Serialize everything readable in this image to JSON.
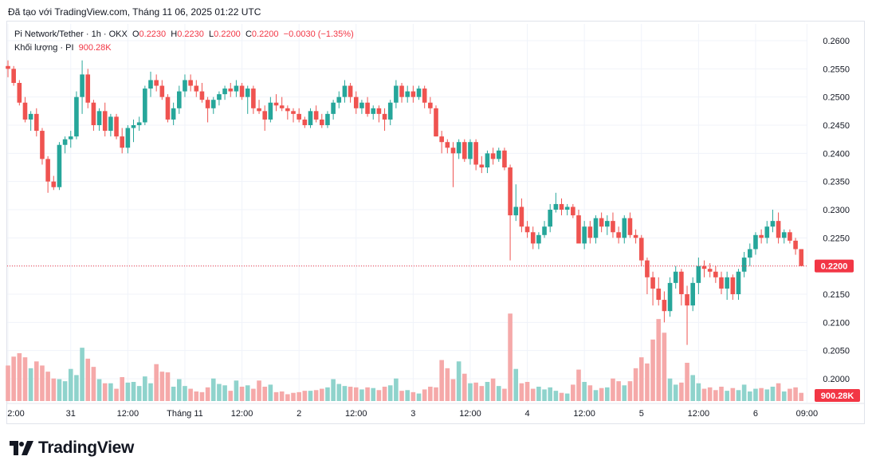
{
  "caption": "Đã tạo với TradingView.com, Tháng 11 06, 2025 01:22 UTC",
  "legend": {
    "symbol": "Pi Network/Tether · 1h · OKX",
    "o_label": "O",
    "o_value": "0.2230",
    "h_label": "H",
    "h_value": "0.2230",
    "l_label": "L",
    "l_value": "0.2200",
    "c_label": "C",
    "c_value": "0.2200",
    "change": "−0.0030 (−1.35%)",
    "volume_label": "Khối lượng · PI",
    "volume_value": "900.28K"
  },
  "brand": {
    "name": "TradingView",
    "logo_icon": "tradingview-logo-icon"
  },
  "colors": {
    "up": "#26a69a",
    "down": "#ef5350",
    "up_vol": "#8fd3cc",
    "down_vol": "#f5a9a9",
    "tag": "#f23645"
  },
  "chart_data": {
    "type": "candlestick",
    "title": "Pi Network/Tether · 1h · OKX",
    "y_ticks": [
      "0.2600",
      "0.2550",
      "0.2500",
      "0.2450",
      "0.2400",
      "0.2350",
      "0.2300",
      "0.2250",
      "0.2200",
      "0.2150",
      "0.2100",
      "0.2050",
      "0.2000"
    ],
    "ylim": [
      0.1975,
      0.2625
    ],
    "x_ticks": [
      {
        "label": "2:00",
        "index": 0
      },
      {
        "label": "31",
        "index": 11
      },
      {
        "label": "12:00",
        "index": 21
      },
      {
        "label": "Tháng 11",
        "index": 31
      },
      {
        "label": "12:00",
        "index": 41
      },
      {
        "label": "2",
        "index": 51
      },
      {
        "label": "12:00",
        "index": 61
      },
      {
        "label": "3",
        "index": 71
      },
      {
        "label": "12:00",
        "index": 81
      },
      {
        "label": "4",
        "index": 91
      },
      {
        "label": "12:00",
        "index": 101
      },
      {
        "label": "5",
        "index": 111
      },
      {
        "label": "12:00",
        "index": 121
      },
      {
        "label": "6",
        "index": 131
      },
      {
        "label": "09:00",
        "index": 140
      }
    ],
    "last_price": "0.2200",
    "last_volume": "900.28K",
    "volume_max": 1400,
    "ohlcv": [
      [
        0.2555,
        0.2565,
        0.2535,
        0.255,
        520
      ],
      [
        0.255,
        0.2555,
        0.252,
        0.2525,
        650
      ],
      [
        0.2525,
        0.253,
        0.2485,
        0.249,
        700
      ],
      [
        0.249,
        0.25,
        0.2455,
        0.246,
        640
      ],
      [
        0.246,
        0.2475,
        0.244,
        0.247,
        480
      ],
      [
        0.247,
        0.248,
        0.243,
        0.244,
        580
      ],
      [
        0.244,
        0.2445,
        0.238,
        0.239,
        520
      ],
      [
        0.239,
        0.2395,
        0.233,
        0.235,
        430
      ],
      [
        0.235,
        0.236,
        0.2335,
        0.234,
        330
      ],
      [
        0.234,
        0.242,
        0.2335,
        0.2415,
        320
      ],
      [
        0.2415,
        0.243,
        0.24,
        0.2425,
        290
      ],
      [
        0.2425,
        0.244,
        0.241,
        0.243,
        470
      ],
      [
        0.243,
        0.251,
        0.2425,
        0.25,
        380
      ],
      [
        0.25,
        0.2565,
        0.247,
        0.254,
        780
      ],
      [
        0.254,
        0.255,
        0.248,
        0.249,
        620
      ],
      [
        0.249,
        0.2495,
        0.244,
        0.245,
        500
      ],
      [
        0.245,
        0.248,
        0.244,
        0.2475,
        320
      ],
      [
        0.2475,
        0.249,
        0.243,
        0.244,
        260
      ],
      [
        0.244,
        0.247,
        0.243,
        0.2465,
        260
      ],
      [
        0.2465,
        0.247,
        0.2425,
        0.243,
        180
      ],
      [
        0.243,
        0.2445,
        0.24,
        0.241,
        350
      ],
      [
        0.241,
        0.245,
        0.24,
        0.2445,
        270
      ],
      [
        0.2445,
        0.246,
        0.242,
        0.245,
        280
      ],
      [
        0.245,
        0.2465,
        0.244,
        0.2455,
        220
      ],
      [
        0.2455,
        0.252,
        0.245,
        0.2515,
        360
      ],
      [
        0.2515,
        0.2545,
        0.25,
        0.253,
        260
      ],
      [
        0.253,
        0.254,
        0.251,
        0.252,
        540
      ],
      [
        0.252,
        0.253,
        0.2495,
        0.25,
        430
      ],
      [
        0.25,
        0.2505,
        0.2455,
        0.246,
        420
      ],
      [
        0.246,
        0.249,
        0.245,
        0.248,
        210
      ],
      [
        0.248,
        0.252,
        0.247,
        0.251,
        320
      ],
      [
        0.251,
        0.254,
        0.25,
        0.253,
        220
      ],
      [
        0.253,
        0.254,
        0.251,
        0.252,
        180
      ],
      [
        0.252,
        0.253,
        0.25,
        0.251,
        140
      ],
      [
        0.251,
        0.2525,
        0.249,
        0.2495,
        130
      ],
      [
        0.2495,
        0.25,
        0.2455,
        0.248,
        200
      ],
      [
        0.248,
        0.25,
        0.247,
        0.2495,
        330
      ],
      [
        0.2495,
        0.251,
        0.2485,
        0.2505,
        250
      ],
      [
        0.2505,
        0.252,
        0.2495,
        0.2515,
        230
      ],
      [
        0.2515,
        0.2525,
        0.25,
        0.251,
        150
      ],
      [
        0.251,
        0.253,
        0.25,
        0.252,
        300
      ],
      [
        0.252,
        0.2525,
        0.2495,
        0.25,
        210
      ],
      [
        0.25,
        0.252,
        0.247,
        0.2515,
        230
      ],
      [
        0.2515,
        0.252,
        0.247,
        0.248,
        180
      ],
      [
        0.248,
        0.2495,
        0.247,
        0.2475,
        300
      ],
      [
        0.2475,
        0.2485,
        0.244,
        0.246,
        210
      ],
      [
        0.246,
        0.25,
        0.2455,
        0.249,
        240
      ],
      [
        0.249,
        0.2505,
        0.2475,
        0.2485,
        130
      ],
      [
        0.2485,
        0.25,
        0.2475,
        0.248,
        140
      ],
      [
        0.248,
        0.2485,
        0.246,
        0.2475,
        100
      ],
      [
        0.2475,
        0.248,
        0.2455,
        0.247,
        120
      ],
      [
        0.247,
        0.248,
        0.2455,
        0.246,
        130
      ],
      [
        0.246,
        0.2465,
        0.2445,
        0.245,
        150
      ],
      [
        0.245,
        0.248,
        0.2445,
        0.2475,
        150
      ],
      [
        0.2475,
        0.2485,
        0.2455,
        0.246,
        160
      ],
      [
        0.246,
        0.247,
        0.2445,
        0.245,
        180
      ],
      [
        0.245,
        0.2475,
        0.2445,
        0.247,
        200
      ],
      [
        0.247,
        0.2495,
        0.246,
        0.249,
        320
      ],
      [
        0.249,
        0.251,
        0.248,
        0.25,
        250
      ],
      [
        0.25,
        0.253,
        0.249,
        0.252,
        220
      ],
      [
        0.252,
        0.2525,
        0.249,
        0.25,
        210
      ],
      [
        0.25,
        0.251,
        0.247,
        0.248,
        200
      ],
      [
        0.248,
        0.2495,
        0.247,
        0.249,
        170
      ],
      [
        0.249,
        0.25,
        0.2465,
        0.247,
        200
      ],
      [
        0.247,
        0.2485,
        0.246,
        0.248,
        190
      ],
      [
        0.248,
        0.2485,
        0.2455,
        0.247,
        160
      ],
      [
        0.247,
        0.248,
        0.244,
        0.246,
        210
      ],
      [
        0.246,
        0.2495,
        0.245,
        0.249,
        230
      ],
      [
        0.249,
        0.253,
        0.248,
        0.252,
        330
      ],
      [
        0.252,
        0.2525,
        0.249,
        0.25,
        150
      ],
      [
        0.25,
        0.252,
        0.249,
        0.251,
        160
      ],
      [
        0.251,
        0.252,
        0.249,
        0.25,
        130
      ],
      [
        0.25,
        0.252,
        0.2495,
        0.2515,
        110
      ],
      [
        0.2515,
        0.252,
        0.248,
        0.249,
        170
      ],
      [
        0.249,
        0.25,
        0.247,
        0.248,
        210
      ],
      [
        0.248,
        0.2485,
        0.243,
        0.243,
        200
      ],
      [
        0.243,
        0.244,
        0.24,
        0.242,
        600
      ],
      [
        0.242,
        0.2425,
        0.24,
        0.241,
        480
      ],
      [
        0.241,
        0.242,
        0.234,
        0.24,
        320
      ],
      [
        0.24,
        0.2425,
        0.239,
        0.242,
        580
      ],
      [
        0.242,
        0.2425,
        0.2385,
        0.239,
        400
      ],
      [
        0.239,
        0.2425,
        0.238,
        0.242,
        260
      ],
      [
        0.242,
        0.2425,
        0.237,
        0.238,
        270
      ],
      [
        0.238,
        0.2395,
        0.2365,
        0.2375,
        220
      ],
      [
        0.2375,
        0.2405,
        0.2365,
        0.24,
        280
      ],
      [
        0.24,
        0.241,
        0.238,
        0.239,
        330
      ],
      [
        0.239,
        0.241,
        0.2385,
        0.2405,
        220
      ],
      [
        0.2405,
        0.241,
        0.237,
        0.2375,
        180
      ],
      [
        0.2375,
        0.238,
        0.221,
        0.229,
        1280
      ],
      [
        0.229,
        0.2345,
        0.228,
        0.2305,
        470
      ],
      [
        0.2305,
        0.232,
        0.226,
        0.227,
        260
      ],
      [
        0.227,
        0.228,
        0.225,
        0.226,
        280
      ],
      [
        0.226,
        0.227,
        0.223,
        0.224,
        180
      ],
      [
        0.224,
        0.226,
        0.223,
        0.2255,
        210
      ],
      [
        0.2255,
        0.228,
        0.225,
        0.227,
        170
      ],
      [
        0.227,
        0.231,
        0.226,
        0.23,
        200
      ],
      [
        0.23,
        0.233,
        0.2295,
        0.231,
        150
      ],
      [
        0.231,
        0.232,
        0.229,
        0.23,
        120
      ],
      [
        0.23,
        0.231,
        0.229,
        0.2305,
        110
      ],
      [
        0.2305,
        0.231,
        0.2285,
        0.229,
        240
      ],
      [
        0.229,
        0.23,
        0.225,
        0.224,
        460
      ],
      [
        0.224,
        0.228,
        0.223,
        0.227,
        280
      ],
      [
        0.227,
        0.228,
        0.224,
        0.225,
        230
      ],
      [
        0.225,
        0.229,
        0.224,
        0.2285,
        160
      ],
      [
        0.2285,
        0.2295,
        0.226,
        0.227,
        190
      ],
      [
        0.227,
        0.229,
        0.2255,
        0.228,
        200
      ],
      [
        0.228,
        0.2295,
        0.225,
        0.226,
        330
      ],
      [
        0.226,
        0.227,
        0.224,
        0.225,
        290
      ],
      [
        0.225,
        0.229,
        0.224,
        0.2285,
        230
      ],
      [
        0.2285,
        0.2295,
        0.225,
        0.2255,
        290
      ],
      [
        0.2255,
        0.2265,
        0.224,
        0.225,
        480
      ],
      [
        0.225,
        0.2255,
        0.22,
        0.221,
        640
      ],
      [
        0.221,
        0.2215,
        0.215,
        0.218,
        550
      ],
      [
        0.218,
        0.219,
        0.213,
        0.216,
        900
      ],
      [
        0.216,
        0.218,
        0.213,
        0.214,
        1200
      ],
      [
        0.214,
        0.2155,
        0.21,
        0.212,
        1000
      ],
      [
        0.212,
        0.218,
        0.211,
        0.217,
        330
      ],
      [
        0.217,
        0.22,
        0.216,
        0.219,
        240
      ],
      [
        0.219,
        0.2195,
        0.213,
        0.215,
        270
      ],
      [
        0.215,
        0.2165,
        0.206,
        0.213,
        560
      ],
      [
        0.213,
        0.218,
        0.212,
        0.217,
        380
      ],
      [
        0.217,
        0.2215,
        0.215,
        0.22,
        260
      ],
      [
        0.22,
        0.221,
        0.218,
        0.2195,
        180
      ],
      [
        0.2195,
        0.2205,
        0.218,
        0.219,
        200
      ],
      [
        0.219,
        0.22,
        0.217,
        0.218,
        160
      ],
      [
        0.218,
        0.219,
        0.215,
        0.216,
        210
      ],
      [
        0.216,
        0.219,
        0.214,
        0.218,
        150
      ],
      [
        0.218,
        0.2185,
        0.214,
        0.215,
        190
      ],
      [
        0.215,
        0.2195,
        0.214,
        0.219,
        160
      ],
      [
        0.219,
        0.2225,
        0.218,
        0.2215,
        240
      ],
      [
        0.2215,
        0.224,
        0.22,
        0.223,
        140
      ],
      [
        0.223,
        0.226,
        0.222,
        0.2255,
        180
      ],
      [
        0.2255,
        0.2265,
        0.224,
        0.225,
        190
      ],
      [
        0.225,
        0.228,
        0.224,
        0.227,
        170
      ],
      [
        0.227,
        0.23,
        0.226,
        0.228,
        210
      ],
      [
        0.228,
        0.2295,
        0.224,
        0.225,
        260
      ],
      [
        0.225,
        0.2265,
        0.224,
        0.226,
        140
      ],
      [
        0.226,
        0.2265,
        0.224,
        0.2245,
        180
      ],
      [
        0.2245,
        0.225,
        0.222,
        0.223,
        200
      ],
      [
        0.223,
        0.223,
        0.22,
        0.22,
        120
      ]
    ]
  }
}
